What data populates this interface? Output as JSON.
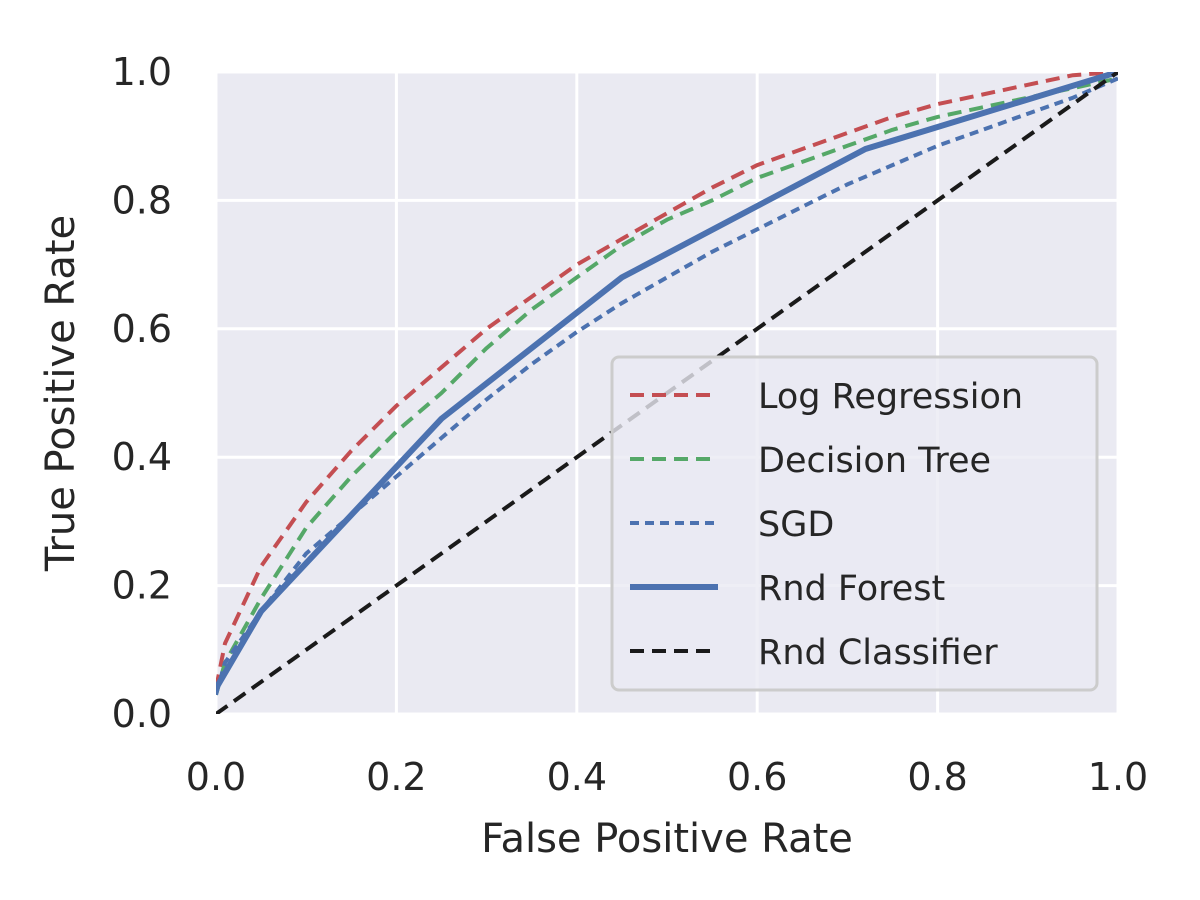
{
  "chart_data": {
    "type": "line",
    "title": "",
    "xlabel": "False Positive Rate",
    "ylabel": "True Positive Rate",
    "xlim": [
      0,
      1
    ],
    "ylim": [
      0,
      1
    ],
    "xticks": [
      "0.0",
      "0.2",
      "0.4",
      "0.6",
      "0.8",
      "1.0"
    ],
    "yticks": [
      "0.0",
      "0.2",
      "0.4",
      "0.6",
      "0.8",
      "1.0"
    ],
    "grid": true,
    "legend_position": "lower-right",
    "colors": {
      "plot_background": "#EAEAF2",
      "grid": "#FFFFFF",
      "legend_background": "#EAEAF2",
      "legend_border": "#CCCCCC"
    },
    "series": [
      {
        "name": "Log Regression",
        "color": "#C44E52",
        "style": "dashed",
        "x": [
          0.0,
          0.01,
          0.05,
          0.1,
          0.15,
          0.2,
          0.25,
          0.3,
          0.35,
          0.4,
          0.45,
          0.5,
          0.55,
          0.6,
          0.65,
          0.7,
          0.75,
          0.8,
          0.85,
          0.9,
          0.95,
          1.0
        ],
        "y": [
          0.04,
          0.11,
          0.23,
          0.33,
          0.41,
          0.48,
          0.54,
          0.6,
          0.65,
          0.7,
          0.74,
          0.78,
          0.82,
          0.855,
          0.88,
          0.905,
          0.93,
          0.95,
          0.965,
          0.98,
          0.995,
          1.0
        ]
      },
      {
        "name": "Decision Tree",
        "color": "#55A868",
        "style": "dashed",
        "x": [
          0.0,
          0.01,
          0.05,
          0.1,
          0.15,
          0.2,
          0.25,
          0.3,
          0.35,
          0.4,
          0.45,
          0.5,
          0.55,
          0.6,
          0.65,
          0.7,
          0.75,
          0.8,
          0.85,
          0.9,
          0.95,
          1.0
        ],
        "y": [
          0.03,
          0.08,
          0.18,
          0.29,
          0.37,
          0.44,
          0.5,
          0.57,
          0.63,
          0.68,
          0.73,
          0.77,
          0.8,
          0.835,
          0.86,
          0.885,
          0.91,
          0.93,
          0.945,
          0.96,
          0.975,
          0.99
        ]
      },
      {
        "name": "SGD",
        "color": "#4C72B0",
        "style": "dashed-short",
        "x": [
          0.0,
          0.01,
          0.05,
          0.1,
          0.15,
          0.2,
          0.25,
          0.3,
          0.35,
          0.4,
          0.45,
          0.5,
          0.55,
          0.6,
          0.65,
          0.7,
          0.75,
          0.8,
          0.85,
          0.9,
          0.95,
          1.0
        ],
        "y": [
          0.03,
          0.08,
          0.16,
          0.25,
          0.31,
          0.37,
          0.43,
          0.49,
          0.545,
          0.595,
          0.64,
          0.68,
          0.72,
          0.755,
          0.79,
          0.825,
          0.855,
          0.885,
          0.91,
          0.935,
          0.96,
          0.99
        ]
      },
      {
        "name": "Rnd Forest",
        "color": "#4C72B0",
        "style": "solid",
        "x": [
          0.0,
          0.05,
          0.25,
          0.45,
          0.72,
          1.0
        ],
        "y": [
          0.04,
          0.16,
          0.46,
          0.68,
          0.88,
          1.0
        ]
      },
      {
        "name": "Rnd Classifier",
        "color": "#1A1A1A",
        "style": "dashed",
        "x": [
          0.0,
          1.0
        ],
        "y": [
          0.0,
          1.0
        ]
      }
    ]
  }
}
